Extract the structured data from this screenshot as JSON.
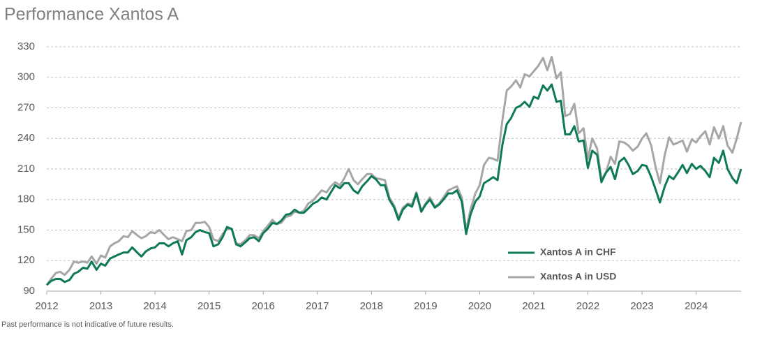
{
  "chart_data": {
    "type": "line",
    "title": "Performance Xantos A",
    "footnote": "Past performance is not indicative of future results.",
    "x": [
      2012,
      2012.08,
      2012.17,
      2012.25,
      2012.33,
      2012.42,
      2012.5,
      2012.58,
      2012.67,
      2012.75,
      2012.83,
      2012.92,
      2013,
      2013.08,
      2013.17,
      2013.25,
      2013.33,
      2013.42,
      2013.5,
      2013.58,
      2013.67,
      2013.75,
      2013.83,
      2013.92,
      2014,
      2014.08,
      2014.17,
      2014.25,
      2014.33,
      2014.42,
      2014.5,
      2014.58,
      2014.67,
      2014.75,
      2014.83,
      2014.92,
      2015,
      2015.08,
      2015.17,
      2015.25,
      2015.33,
      2015.42,
      2015.5,
      2015.58,
      2015.67,
      2015.75,
      2015.83,
      2015.92,
      2016,
      2016.08,
      2016.17,
      2016.25,
      2016.33,
      2016.42,
      2016.5,
      2016.58,
      2016.67,
      2016.75,
      2016.83,
      2016.92,
      2017,
      2017.08,
      2017.17,
      2017.25,
      2017.33,
      2017.42,
      2017.5,
      2017.58,
      2017.67,
      2017.75,
      2017.83,
      2017.92,
      2018,
      2018.08,
      2018.17,
      2018.25,
      2018.33,
      2018.42,
      2018.5,
      2018.58,
      2018.67,
      2018.75,
      2018.83,
      2018.92,
      2019,
      2019.08,
      2019.17,
      2019.25,
      2019.33,
      2019.42,
      2019.5,
      2019.58,
      2019.67,
      2019.75,
      2019.83,
      2019.92,
      2020,
      2020.08,
      2020.17,
      2020.25,
      2020.33,
      2020.42,
      2020.5,
      2020.58,
      2020.67,
      2020.75,
      2020.83,
      2020.92,
      2021,
      2021.08,
      2021.17,
      2021.25,
      2021.33,
      2021.42,
      2021.5,
      2021.58,
      2021.67,
      2021.75,
      2021.83,
      2021.92,
      2022,
      2022.08,
      2022.17,
      2022.25,
      2022.33,
      2022.42,
      2022.5,
      2022.58,
      2022.67,
      2022.75,
      2022.83,
      2022.92,
      2023,
      2023.08,
      2023.17,
      2023.25,
      2023.33,
      2023.42,
      2023.5,
      2023.58,
      2023.67,
      2023.75,
      2023.83,
      2023.92,
      2024,
      2024.08,
      2024.17,
      2024.25,
      2024.33,
      2024.42,
      2024.5,
      2024.58,
      2024.67,
      2024.75,
      2024.83
    ],
    "series": [
      {
        "name": "Xantos A in USD",
        "color": "#a6a6a6",
        "values": [
          96,
          102,
          108,
          109,
          106,
          111,
          119,
          118,
          119,
          118,
          124,
          117,
          125,
          123,
          134,
          137,
          139,
          144,
          143,
          149,
          145,
          142,
          144,
          148,
          147,
          150,
          145,
          141,
          143,
          141,
          139,
          149,
          150,
          157,
          157,
          158,
          153,
          141,
          139,
          146,
          151,
          151,
          137,
          136,
          140,
          145,
          145,
          142,
          149,
          154,
          160,
          156,
          157,
          163,
          164,
          168,
          167,
          169,
          176,
          179,
          184,
          189,
          187,
          193,
          197,
          194,
          201,
          210,
          199,
          195,
          200,
          205,
          205,
          201,
          200,
          199,
          182,
          174,
          162,
          172,
          176,
          175,
          187,
          169,
          176,
          182,
          173,
          176,
          182,
          189,
          191,
          193,
          182,
          150,
          170,
          186,
          194,
          214,
          221,
          220,
          218,
          258,
          287,
          291,
          297,
          290,
          303,
          301,
          306,
          311,
          319,
          307,
          320,
          299,
          305,
          262,
          264,
          274,
          245,
          250,
          220,
          240,
          230,
          200,
          206,
          222,
          215,
          237,
          236,
          233,
          228,
          232,
          240,
          245,
          233,
          212,
          196,
          224,
          241,
          234,
          236,
          238,
          227,
          239,
          236,
          242,
          247,
          234,
          251,
          240,
          252,
          233,
          226,
          240,
          256
        ]
      },
      {
        "name": "Xantos A in CHF",
        "color": "#0e7a55",
        "values": [
          96,
          100,
          102,
          102,
          99,
          101,
          107,
          109,
          113,
          112,
          119,
          111,
          117,
          115,
          122,
          124,
          126,
          128,
          128,
          133,
          128,
          124,
          129,
          132,
          133,
          137,
          137,
          134,
          137,
          139,
          126,
          140,
          143,
          148,
          150,
          148,
          147,
          134,
          136,
          143,
          153,
          151,
          136,
          134,
          138,
          142,
          143,
          139,
          147,
          151,
          157,
          156,
          159,
          165,
          166,
          170,
          167,
          167,
          171,
          176,
          178,
          182,
          180,
          187,
          194,
          191,
          196,
          196,
          189,
          186,
          193,
          198,
          203,
          200,
          194,
          194,
          180,
          172,
          160,
          170,
          175,
          173,
          186,
          168,
          175,
          180,
          172,
          175,
          180,
          186,
          186,
          189,
          178,
          146,
          165,
          178,
          183,
          196,
          199,
          202,
          199,
          234,
          254,
          260,
          270,
          272,
          276,
          271,
          281,
          279,
          292,
          287,
          293,
          276,
          277,
          244,
          244,
          252,
          237,
          238,
          211,
          228,
          224,
          197,
          206,
          212,
          200,
          217,
          221,
          214,
          205,
          208,
          214,
          213,
          202,
          190,
          177,
          193,
          203,
          200,
          207,
          214,
          206,
          215,
          210,
          213,
          208,
          202,
          221,
          216,
          228,
          210,
          201,
          196,
          210
        ]
      }
    ],
    "legend_order": [
      1,
      0
    ],
    "xlim": [
      2012,
      2024.83
    ],
    "xticks": [
      2012,
      2013,
      2014,
      2015,
      2016,
      2017,
      2018,
      2019,
      2020,
      2021,
      2022,
      2023,
      2024
    ],
    "ylim": [
      90,
      330
    ],
    "yticks": [
      90,
      120,
      150,
      180,
      210,
      240,
      270,
      300,
      330
    ],
    "grid": true
  }
}
